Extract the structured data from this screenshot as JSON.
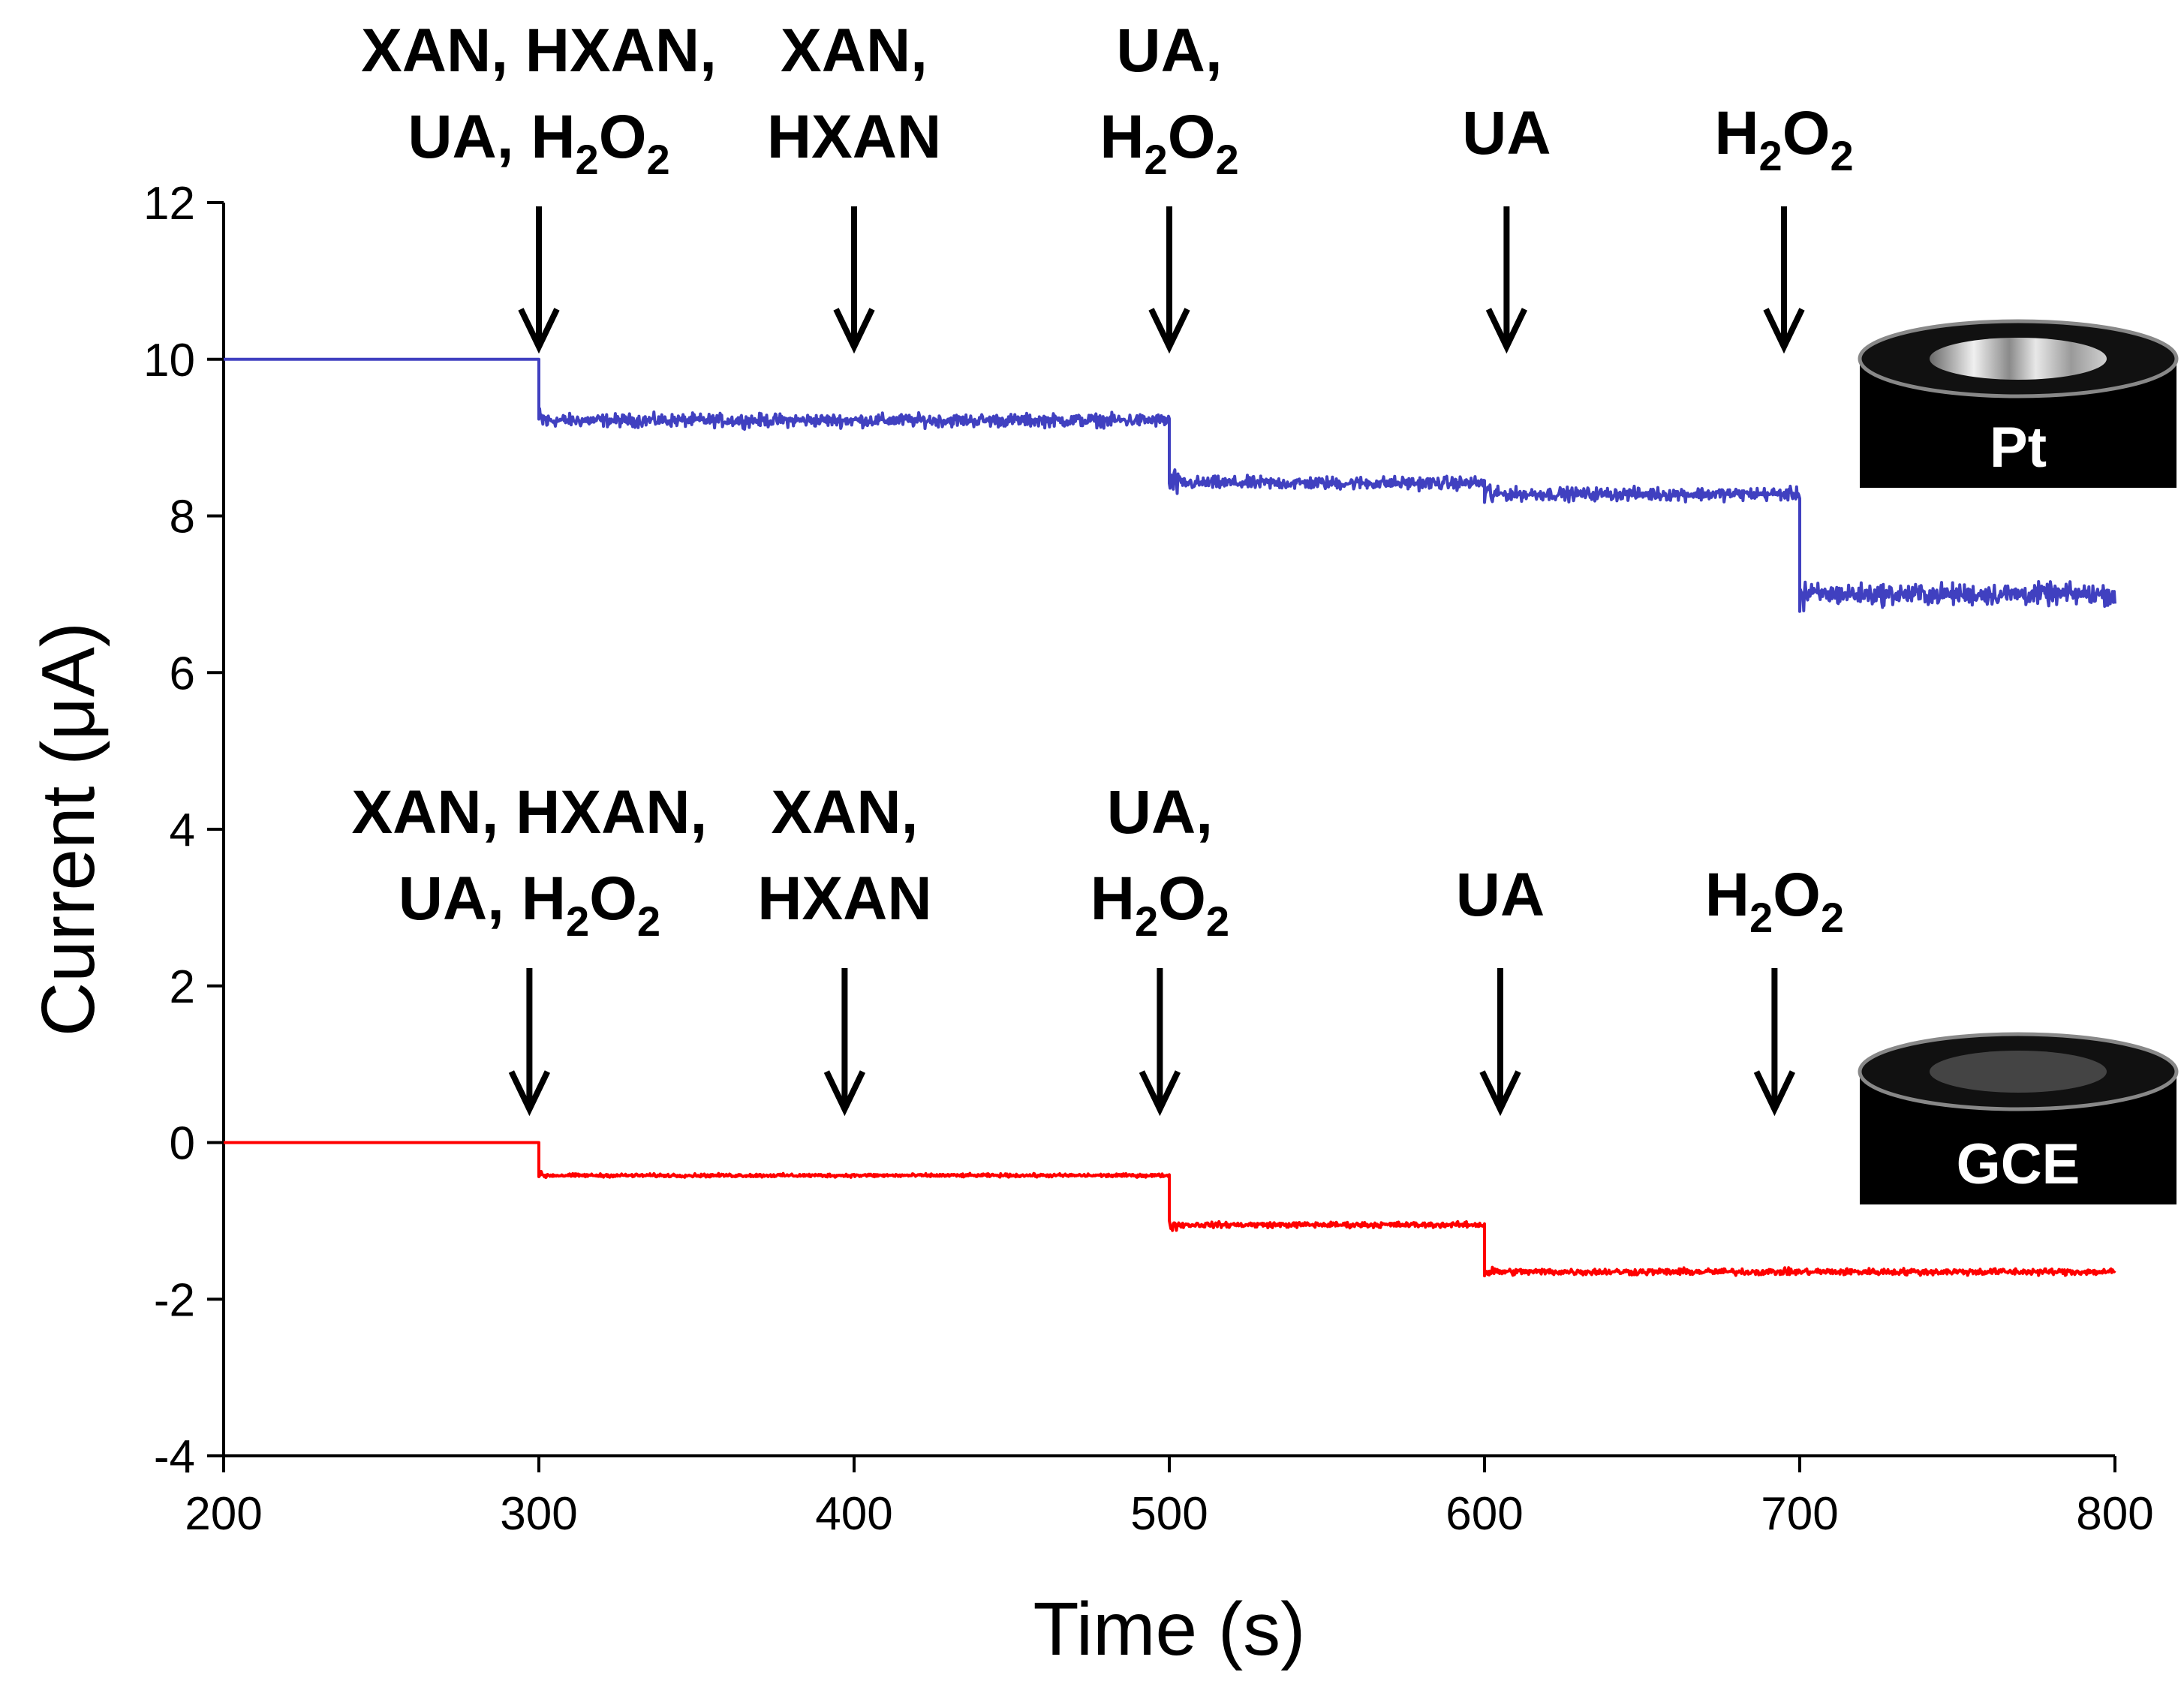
{
  "chart_data": {
    "type": "line",
    "xlabel": "Time (s)",
    "ylabel": "Current (μA)",
    "xlim": [
      200,
      800
    ],
    "ylim": [
      -4,
      12
    ],
    "xticks": [
      200,
      300,
      400,
      500,
      600,
      700,
      800
    ],
    "yticks": [
      -4,
      -2,
      0,
      2,
      4,
      6,
      8,
      10,
      12
    ],
    "grid": false,
    "series": [
      {
        "name": "Pt",
        "color": "#4040c0",
        "steps": [
          {
            "t_start": 200,
            "t_end": 300,
            "mean": 10.0,
            "noise": 0
          },
          {
            "t_start": 300,
            "t_end": 500,
            "mean": 9.22,
            "noise": 0.12
          },
          {
            "t_start": 500,
            "t_end": 600,
            "mean": 8.42,
            "noise": 0.12
          },
          {
            "t_start": 600,
            "t_end": 700,
            "mean": 8.28,
            "noise": 0.12
          },
          {
            "t_start": 700,
            "t_end": 800,
            "mean": 7.0,
            "noise": 0.2
          }
        ]
      },
      {
        "name": "GCE",
        "color": "#ff0000",
        "steps": [
          {
            "t_start": 200,
            "t_end": 300,
            "mean": 0.0,
            "noise": 0
          },
          {
            "t_start": 300,
            "t_end": 500,
            "mean": -0.42,
            "noise": 0.03
          },
          {
            "t_start": 500,
            "t_end": 600,
            "mean": -1.05,
            "noise": 0.05
          },
          {
            "t_start": 600,
            "t_end": 800,
            "mean": -1.65,
            "noise": 0.06
          }
        ]
      }
    ],
    "annotations": [
      {
        "group": "Pt",
        "x": 300,
        "lines": [
          "XAN, HXAN,",
          "UA, H2O2"
        ]
      },
      {
        "group": "Pt",
        "x": 400,
        "lines": [
          "XAN,",
          "HXAN"
        ]
      },
      {
        "group": "Pt",
        "x": 500,
        "lines": [
          "UA,",
          "H2O2"
        ]
      },
      {
        "group": "Pt",
        "x": 607,
        "lines": [
          "UA"
        ]
      },
      {
        "group": "Pt",
        "x": 695,
        "lines": [
          "H2O2"
        ]
      },
      {
        "group": "GCE",
        "x": 297,
        "lines": [
          "XAN, HXAN,",
          "UA, H2O2"
        ]
      },
      {
        "group": "GCE",
        "x": 397,
        "lines": [
          "XAN,",
          "HXAN"
        ]
      },
      {
        "group": "GCE",
        "x": 497,
        "lines": [
          "UA,",
          "H2O2"
        ]
      },
      {
        "group": "GCE",
        "x": 605,
        "lines": [
          "UA"
        ]
      },
      {
        "group": "GCE",
        "x": 692,
        "lines": [
          "H2O2"
        ]
      }
    ],
    "electrodes": [
      {
        "label": "Pt",
        "group": "Pt",
        "disk_color": "#9a9a9a"
      },
      {
        "label": "GCE",
        "group": "GCE",
        "disk_color": "#444444"
      }
    ]
  }
}
